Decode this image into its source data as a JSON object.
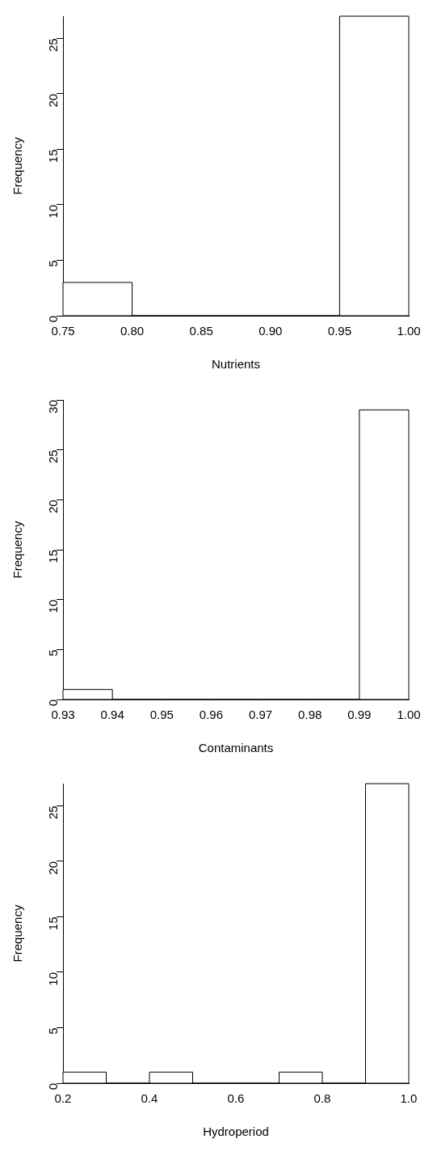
{
  "chart_data": [
    {
      "type": "histogram",
      "xlabel": "Nutrients",
      "ylabel": "Frequency",
      "bins": [
        0.75,
        0.8,
        0.85,
        0.9,
        0.95,
        1.0
      ],
      "values": [
        3,
        0,
        0,
        0,
        27
      ],
      "color": "#ffffff",
      "xlim": [
        0.75,
        1.0
      ],
      "xticks": [
        0.75,
        {
          "value": 0.8,
          "label": "0.80"
        },
        0.85,
        {
          "value": 0.9,
          "label": "0.90"
        },
        0.95,
        {
          "value": 1.0,
          "label": "1.00"
        }
      ],
      "ylim": [
        0,
        27
      ],
      "yticks": [
        0,
        5,
        10,
        15,
        20,
        25
      ],
      "grid": false,
      "legend": false
    },
    {
      "type": "histogram",
      "xlabel": "Contaminants",
      "ylabel": "Frequency",
      "bins": [
        0.93,
        0.94,
        0.95,
        0.96,
        0.97,
        0.98,
        0.99,
        1.0
      ],
      "values": [
        1,
        0,
        0,
        0,
        0,
        0,
        29
      ],
      "color": "#ffffff",
      "xlim": [
        0.93,
        1.0
      ],
      "xticks": [
        0.93,
        0.94,
        0.95,
        0.96,
        0.97,
        0.98,
        0.99,
        {
          "value": 1.0,
          "label": "1.00"
        }
      ],
      "ylim": [
        0,
        30
      ],
      "yticks": [
        0,
        5,
        10,
        15,
        20,
        25,
        30
      ],
      "grid": false,
      "legend": false
    },
    {
      "type": "histogram",
      "xlabel": "Hydroperiod",
      "ylabel": "Frequency",
      "bins": [
        0.2,
        0.3,
        0.4,
        0.5,
        0.6,
        0.7,
        0.8,
        0.9,
        1.0
      ],
      "values": [
        1,
        0,
        1,
        0,
        0,
        1,
        0,
        27
      ],
      "color": "#ffffff",
      "xlim": [
        0.2,
        1.0
      ],
      "xticks": [
        0.2,
        0.4,
        0.6,
        0.8,
        {
          "value": 1.0,
          "label": "1.0"
        }
      ],
      "ylim": [
        0,
        27
      ],
      "yticks": [
        0,
        5,
        10,
        15,
        20,
        25
      ],
      "grid": false,
      "legend": false
    }
  ]
}
